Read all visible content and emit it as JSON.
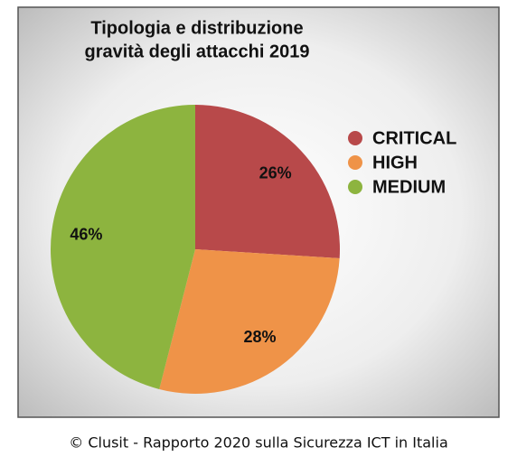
{
  "chart_data": {
    "type": "pie",
    "title": [
      "Tipologia e distribuzione",
      "gravità degli attacchi 2019"
    ],
    "categories": [
      "CRITICAL",
      "HIGH",
      "MEDIUM"
    ],
    "values": [
      26,
      28,
      46
    ],
    "value_labels": [
      "26%",
      "28%",
      "46%"
    ],
    "colors": [
      "#b8494a",
      "#ef9348",
      "#8db43f"
    ],
    "legend": "right"
  },
  "caption": "© Clusit - Rapporto 2020 sulla Sicurezza ICT in Italia"
}
